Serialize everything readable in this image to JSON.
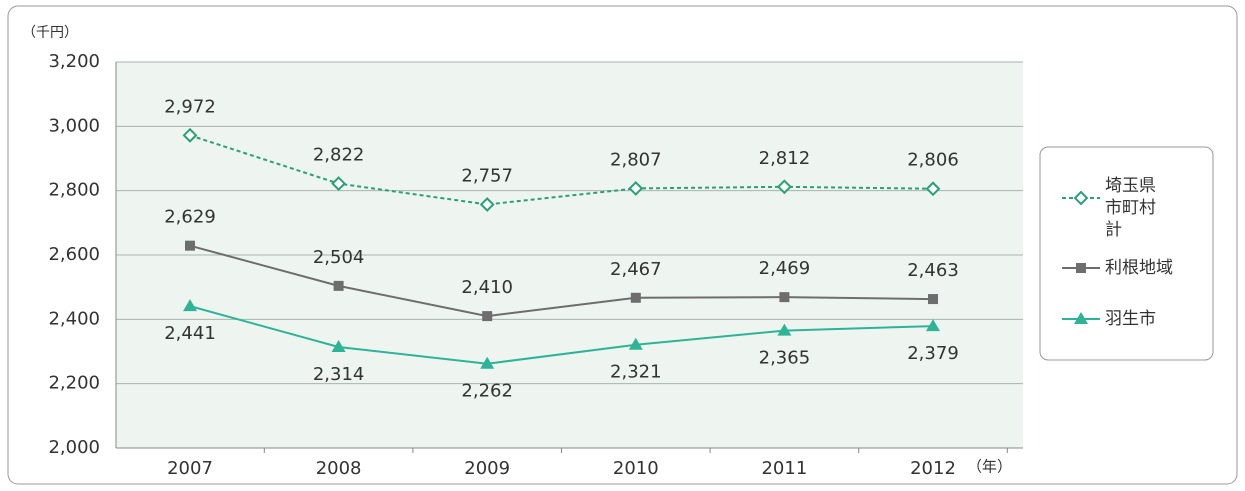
{
  "chart_data": {
    "type": "line",
    "y_label": "（千円）",
    "x_unit": "（年）",
    "categories": [
      "2007",
      "2008",
      "2009",
      "2010",
      "2011",
      "2012"
    ],
    "ylim": [
      2000,
      3200
    ],
    "yticks": [
      {
        "value": 2000,
        "label": "2,000"
      },
      {
        "value": 2200,
        "label": "2,200"
      },
      {
        "value": 2400,
        "label": "2,400"
      },
      {
        "value": 2600,
        "label": "2,600"
      },
      {
        "value": 2800,
        "label": "2,800"
      },
      {
        "value": 3000,
        "label": "3,000"
      },
      {
        "value": 3200,
        "label": "3,200"
      }
    ],
    "grid": true,
    "series": [
      {
        "name": "埼玉県市町村計",
        "color": "#2a9f78",
        "dashed": true,
        "marker": "diamond",
        "label_position": "above",
        "values": [
          2972,
          2822,
          2757,
          2807,
          2812,
          2806
        ],
        "value_labels": [
          "2,972",
          "2,822",
          "2,757",
          "2,807",
          "2,812",
          "2,806"
        ]
      },
      {
        "name": "利根地域",
        "color": "#6d6d6d",
        "dashed": false,
        "marker": "square",
        "label_position": "above",
        "values": [
          2629,
          2504,
          2410,
          2467,
          2469,
          2463
        ],
        "value_labels": [
          "2,629",
          "2,504",
          "2,410",
          "2,467",
          "2,469",
          "2,463"
        ]
      },
      {
        "name": "羽生市",
        "color": "#2db497",
        "dashed": false,
        "marker": "triangle",
        "label_position": "below",
        "values": [
          2441,
          2314,
          2262,
          2321,
          2365,
          2379
        ],
        "value_labels": [
          "2,441",
          "2,314",
          "2,262",
          "2,321",
          "2,365",
          "2,379"
        ]
      }
    ]
  }
}
